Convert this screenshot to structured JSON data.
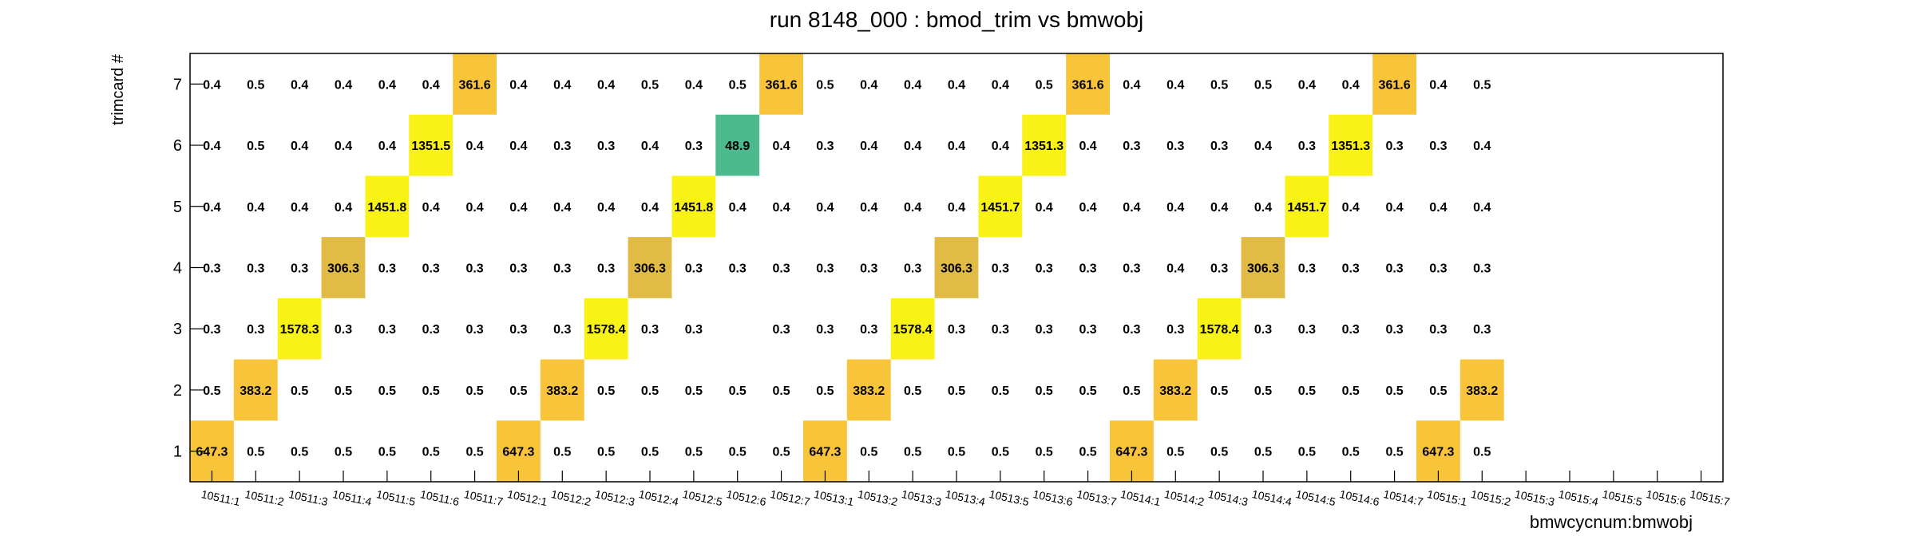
{
  "chart_data": {
    "type": "heatmap",
    "title": "run 8148_000 : bmod_trim vs bmwobj",
    "xlabel": "bmwcycnum:bmwobj",
    "ylabel": "trimcard #",
    "x_categories": [
      "10511:1",
      "10511:2",
      "10511:3",
      "10511:4",
      "10511:5",
      "10511:6",
      "10511:7",
      "10512:1",
      "10512:2",
      "10512:3",
      "10512:4",
      "10512:5",
      "10512:6",
      "10512:7",
      "10513:1",
      "10513:2",
      "10513:3",
      "10513:4",
      "10513:5",
      "10513:6",
      "10513:7",
      "10514:1",
      "10514:2",
      "10514:3",
      "10514:4",
      "10514:5",
      "10514:6",
      "10514:7",
      "10515:1",
      "10515:2",
      "10515:3",
      "10515:4",
      "10515:5",
      "10515:6",
      "10515:7"
    ],
    "y_categories": [
      "1",
      "2",
      "3",
      "4",
      "5",
      "6",
      "7"
    ],
    "grid": false,
    "rows": [
      {
        "y": "7",
        "values": [
          0.4,
          0.5,
          0.4,
          0.4,
          0.4,
          0.4,
          361.6,
          0.4,
          0.4,
          0.4,
          0.5,
          0.4,
          0.5,
          361.6,
          0.5,
          0.4,
          0.4,
          0.4,
          0.4,
          0.5,
          361.6,
          0.4,
          0.4,
          0.5,
          0.5,
          0.4,
          0.4,
          361.6,
          0.4,
          0.5,
          null,
          null,
          null,
          null,
          null
        ]
      },
      {
        "y": "6",
        "values": [
          0.4,
          0.5,
          0.4,
          0.4,
          0.4,
          1351.5,
          0.4,
          0.4,
          0.3,
          0.3,
          0.4,
          0.3,
          48.9,
          0.4,
          0.3,
          0.4,
          0.4,
          0.4,
          0.4,
          1351.3,
          0.4,
          0.3,
          0.3,
          0.3,
          0.4,
          0.3,
          1351.3,
          0.3,
          0.3,
          0.4,
          null,
          null,
          null,
          null,
          null
        ]
      },
      {
        "y": "5",
        "values": [
          0.4,
          0.4,
          0.4,
          0.4,
          1451.8,
          0.4,
          0.4,
          0.4,
          0.4,
          0.4,
          0.4,
          1451.8,
          0.4,
          0.4,
          0.4,
          0.4,
          0.4,
          0.4,
          1451.7,
          0.4,
          0.4,
          0.4,
          0.4,
          0.4,
          0.4,
          1451.7,
          0.4,
          0.4,
          0.4,
          0.4,
          null,
          null,
          null,
          null,
          null
        ]
      },
      {
        "y": "4",
        "values": [
          0.3,
          0.3,
          0.3,
          306.3,
          0.3,
          0.3,
          0.3,
          0.3,
          0.3,
          0.3,
          306.3,
          0.3,
          0.3,
          0.3,
          0.3,
          0.3,
          0.3,
          306.3,
          0.3,
          0.3,
          0.3,
          0.3,
          0.4,
          0.3,
          306.3,
          0.3,
          0.3,
          0.3,
          0.3,
          0.3,
          null,
          null,
          null,
          null,
          null
        ]
      },
      {
        "y": "3",
        "values": [
          0.3,
          0.3,
          1578.3,
          0.3,
          0.3,
          0.3,
          0.3,
          0.3,
          0.3,
          1578.4,
          0.3,
          0.3,
          null,
          0.3,
          0.3,
          0.3,
          1578.4,
          0.3,
          0.3,
          0.3,
          0.3,
          0.3,
          0.3,
          1578.4,
          0.3,
          0.3,
          0.3,
          0.3,
          0.3,
          0.3,
          null,
          null,
          null,
          null,
          null
        ]
      },
      {
        "y": "2",
        "values": [
          0.5,
          383.2,
          0.5,
          0.5,
          0.5,
          0.5,
          0.5,
          0.5,
          383.2,
          0.5,
          0.5,
          0.5,
          0.5,
          0.5,
          0.5,
          383.2,
          0.5,
          0.5,
          0.5,
          0.5,
          0.5,
          0.5,
          383.2,
          0.5,
          0.5,
          0.5,
          0.5,
          0.5,
          0.5,
          383.2,
          null,
          null,
          null,
          null,
          null
        ]
      },
      {
        "y": "1",
        "values": [
          647.3,
          0.5,
          0.5,
          0.5,
          0.5,
          0.5,
          0.5,
          647.3,
          0.5,
          0.5,
          0.5,
          0.5,
          0.5,
          0.5,
          647.3,
          0.5,
          0.5,
          0.5,
          0.5,
          0.5,
          0.5,
          647.3,
          0.5,
          0.5,
          0.5,
          0.5,
          0.5,
          0.5,
          647.3,
          0.5,
          null,
          null,
          null,
          null,
          null
        ]
      }
    ],
    "cell_colors": {
      "0.5": "#f8c43a",
      "48.9": "#4cb98e",
      "306.3": "#e0bb45",
      "361.6": "#f8c43a",
      "383.2": "#f8c43a",
      "647.3": "#f8c43a",
      "1351.3": "#f9f216",
      "1351.5": "#f9f216",
      "1451.7": "#f9f216",
      "1451.8": "#f9f216",
      "1578.3": "#f9f216",
      "1578.4": "#f9f216"
    }
  }
}
